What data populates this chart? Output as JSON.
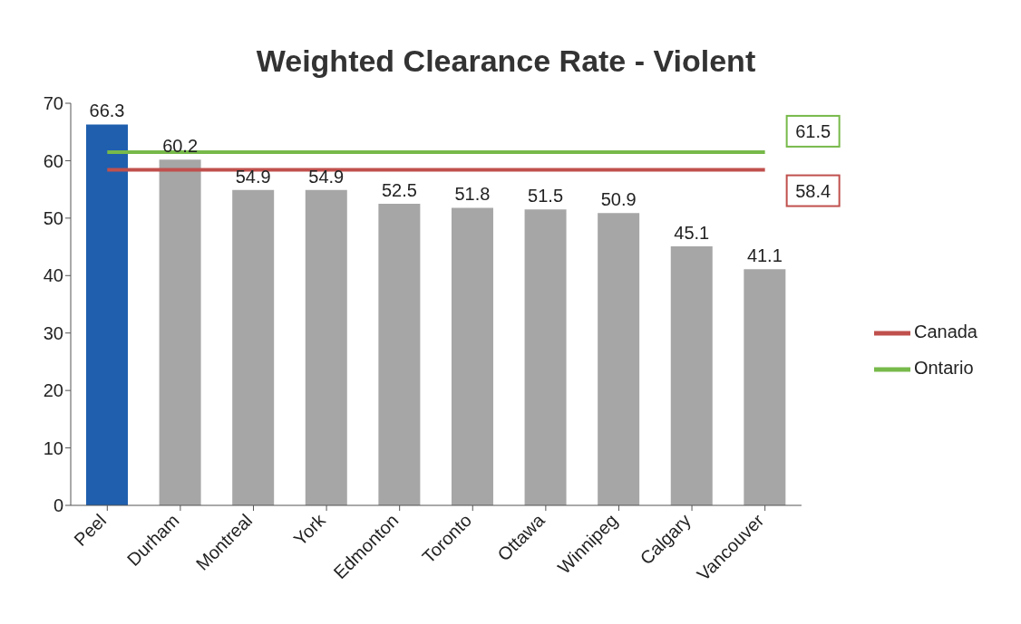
{
  "chart_data": {
    "type": "bar",
    "title": "Weighted Clearance Rate - Violent",
    "categories": [
      "Peel",
      "Durham",
      "Montreal",
      "York",
      "Edmonton",
      "Toronto",
      "Ottawa",
      "Winnipeg",
      "Calgary",
      "Vancouver"
    ],
    "series": [
      {
        "values": [
          66.3,
          60.2,
          54.9,
          54.9,
          52.5,
          51.8,
          51.5,
          50.9,
          45.1,
          41.1
        ],
        "colors": [
          "#1f5fae",
          "#a6a6a6",
          "#a6a6a6",
          "#a6a6a6",
          "#a6a6a6",
          "#a6a6a6",
          "#a6a6a6",
          "#a6a6a6",
          "#a6a6a6",
          "#a6a6a6"
        ]
      },
      {
        "type": "line",
        "name": "Canada",
        "color": "#c0504d",
        "values": [
          58.4,
          58.4,
          58.4,
          58.4,
          58.4,
          58.4,
          58.4,
          58.4,
          58.4,
          58.4
        ],
        "value_labels": [
          null,
          null,
          null,
          null,
          null,
          null,
          null,
          null,
          null,
          "58.4"
        ]
      },
      {
        "type": "line",
        "name": "Ontario",
        "color": "#77b94a",
        "values": [
          61.5,
          61.5,
          61.5,
          61.5,
          61.5,
          61.5,
          61.5,
          61.5,
          61.5,
          61.5
        ],
        "value_labels": [
          null,
          null,
          null,
          null,
          null,
          null,
          null,
          null,
          null,
          "61.5"
        ]
      }
    ],
    "data_labels": true,
    "ylim": [
      0,
      70
    ],
    "yticks": [
      0,
      10,
      20,
      30,
      40,
      50,
      60,
      70
    ],
    "grid": false,
    "legend": "right",
    "marker": "none"
  }
}
